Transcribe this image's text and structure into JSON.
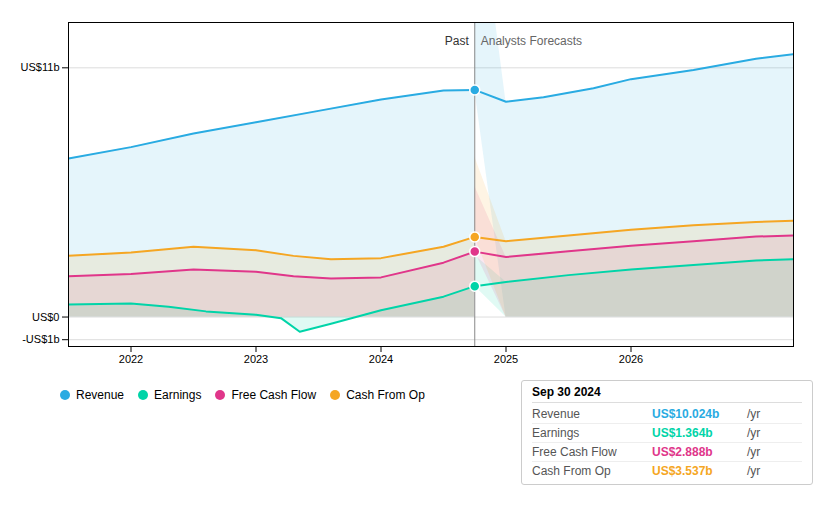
{
  "chart_data": {
    "type": "area",
    "xlim": [
      2021.5,
      2027.3
    ],
    "xticks": [
      2022,
      2023,
      2024,
      2025,
      2026
    ],
    "ylim": [
      -1.3,
      13.0
    ],
    "yticks": [
      {
        "value": -1,
        "label": "-US$1b"
      },
      {
        "value": 0,
        "label": "US$0"
      },
      {
        "value": 11,
        "label": "US$11b"
      }
    ],
    "grid": true,
    "legend": "bottom",
    "divider": {
      "x": 2024.75,
      "left_label": "Past",
      "right_label": "Analysts Forecasts"
    },
    "series": [
      {
        "name": "Revenue",
        "color": "#29abe2",
        "x": [
          2021.5,
          2022.0,
          2022.5,
          2023.0,
          2023.5,
          2024.0,
          2024.5,
          2024.75,
          2024.75,
          2025.0,
          2025.3,
          2025.7,
          2026.0,
          2026.5,
          2027.0,
          2027.3
        ],
        "values": [
          7.0,
          7.5,
          8.1,
          8.6,
          9.1,
          9.6,
          10.0,
          10.024,
          10.024,
          9.5,
          9.7,
          10.1,
          10.5,
          10.9,
          11.4,
          11.6
        ],
        "dot_value": 10.024
      },
      {
        "name": "Earnings",
        "color": "#00d4a8",
        "x": [
          2021.5,
          2022.0,
          2022.3,
          2022.6,
          2023.0,
          2023.2,
          2023.35,
          2023.6,
          2024.0,
          2024.5,
          2024.75,
          2024.75,
          2025.0,
          2025.5,
          2026.0,
          2026.5,
          2027.0,
          2027.3
        ],
        "values": [
          0.55,
          0.6,
          0.45,
          0.25,
          0.1,
          -0.05,
          -0.65,
          -0.3,
          0.3,
          0.9,
          1.364,
          1.364,
          1.55,
          1.85,
          2.1,
          2.3,
          2.5,
          2.55
        ],
        "dot_value": 1.364
      },
      {
        "name": "Free Cash Flow",
        "color": "#e0368a",
        "x": [
          2021.5,
          2022.0,
          2022.5,
          2023.0,
          2023.3,
          2023.6,
          2024.0,
          2024.5,
          2024.75,
          2024.75,
          2025.0,
          2025.5,
          2026.0,
          2026.5,
          2027.0,
          2027.3
        ],
        "values": [
          1.8,
          1.9,
          2.1,
          2.0,
          1.8,
          1.7,
          1.75,
          2.4,
          2.888,
          2.888,
          2.65,
          2.9,
          3.15,
          3.35,
          3.55,
          3.6
        ],
        "dot_value": 2.888
      },
      {
        "name": "Cash From Op",
        "color": "#f5a623",
        "x": [
          2021.5,
          2022.0,
          2022.5,
          2023.0,
          2023.3,
          2023.6,
          2024.0,
          2024.5,
          2024.75,
          2024.75,
          2025.0,
          2025.5,
          2026.0,
          2026.5,
          2027.0,
          2027.3
        ],
        "values": [
          2.7,
          2.85,
          3.1,
          2.95,
          2.7,
          2.55,
          2.6,
          3.1,
          3.537,
          3.537,
          3.35,
          3.6,
          3.85,
          4.05,
          4.2,
          4.25
        ],
        "dot_value": 3.537
      }
    ],
    "tooltip": {
      "date": "Sep 30 2024",
      "rows": [
        {
          "label": "Revenue",
          "value": "US$10.024b",
          "unit": "/yr",
          "color": "#29abe2"
        },
        {
          "label": "Earnings",
          "value": "US$1.364b",
          "unit": "/yr",
          "color": "#00d4a8"
        },
        {
          "label": "Free Cash Flow",
          "value": "US$2.888b",
          "unit": "/yr",
          "color": "#e0368a"
        },
        {
          "label": "Cash From Op",
          "value": "US$3.537b",
          "unit": "/yr",
          "color": "#f5a623"
        }
      ]
    }
  }
}
